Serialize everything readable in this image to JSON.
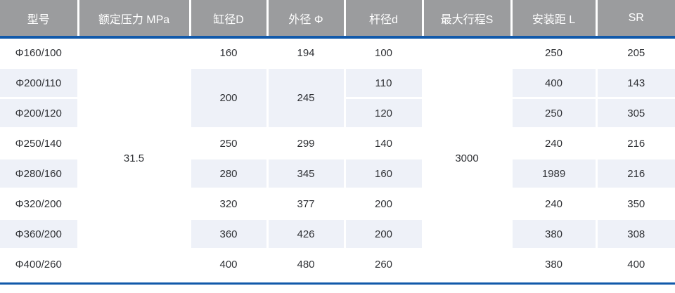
{
  "table": {
    "columns": [
      "型号",
      "额定压力 MPa",
      "缸径D",
      "外径 Φ",
      "杆径d",
      "最大行程S",
      "安装距 L",
      "SR"
    ],
    "pressure": "31.5",
    "stroke": "3000",
    "group_200": {
      "cylinder": "200",
      "outer": "245"
    },
    "rows": [
      {
        "model": "Φ160/100",
        "cylinder": "160",
        "outer": "194",
        "rod": "100",
        "mount": "250",
        "sr": "205"
      },
      {
        "model": "Φ200/110",
        "rod": "110",
        "mount": "400",
        "sr": "143"
      },
      {
        "model": "Φ200/120",
        "rod": "120",
        "mount": "250",
        "sr": "305"
      },
      {
        "model": "Φ250/140",
        "cylinder": "250",
        "outer": "299",
        "rod": "140",
        "mount": "240",
        "sr": "216"
      },
      {
        "model": "Φ280/160",
        "cylinder": "280",
        "outer": "345",
        "rod": "160",
        "mount": "1989",
        "sr": "216"
      },
      {
        "model": "Φ320/200",
        "cylinder": "320",
        "outer": "377",
        "rod": "200",
        "mount": "240",
        "sr": "350"
      },
      {
        "model": "Φ360/200",
        "cylinder": "360",
        "outer": "426",
        "rod": "200",
        "mount": "380",
        "sr": "308"
      },
      {
        "model": "Φ400/260",
        "cylinder": "400",
        "outer": "480",
        "rod": "260",
        "mount": "380",
        "sr": "400"
      }
    ]
  },
  "colors": {
    "header_bg": "#9b9c9e",
    "header_text": "#ffffff",
    "accent_blue": "#1159aa",
    "row_tint": "#eef1f8",
    "body_text": "#2f3135"
  }
}
